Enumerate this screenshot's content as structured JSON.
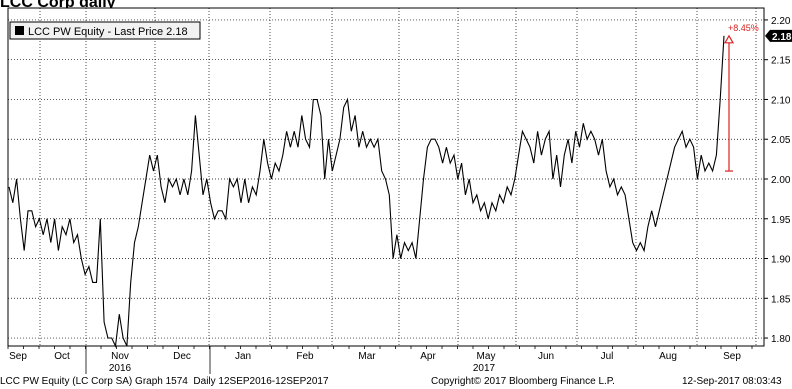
{
  "header": {
    "caption": "LCC Corp daily"
  },
  "chart_data": {
    "type": "line",
    "legend": {
      "text": "LCC PW Equity - Last Price 2.18",
      "placement": "top-left"
    },
    "y_ticks": [
      "1.80",
      "1.85",
      "1.90",
      "1.95",
      "2.00",
      "2.05",
      "2.10",
      "2.15",
      "2.20"
    ],
    "ylim": [
      1.79,
      2.215
    ],
    "grid": true,
    "month_labels": [
      "Sep",
      "Oct",
      "Nov",
      "Dec",
      "Jan",
      "Feb",
      "Mar",
      "Apr",
      "May",
      "Jun",
      "Jul",
      "Aug",
      "Sep"
    ],
    "year_labels": [
      "2016",
      "2017"
    ],
    "last_price_label": "2.18",
    "change_annotation": "+8.45%",
    "series": [
      {
        "values": [
          1.99,
          1.97,
          2.0,
          1.95,
          1.91,
          1.96,
          1.96,
          1.94,
          1.95,
          1.93,
          1.95,
          1.92,
          1.95,
          1.91,
          1.94,
          1.93,
          1.95,
          1.92,
          1.93,
          1.9,
          1.88,
          1.89,
          1.87,
          1.87,
          1.95,
          1.82,
          1.8,
          1.8,
          1.79,
          1.83,
          1.8,
          1.79,
          1.87,
          1.92,
          1.94,
          1.97,
          2.0,
          2.03,
          2.01,
          2.03,
          1.99,
          1.97,
          2.0,
          1.99,
          2.0,
          1.98,
          2.0,
          1.98,
          2.01,
          2.08,
          2.03,
          1.98,
          2.0,
          1.97,
          1.95,
          1.96,
          1.96,
          1.95,
          2.0,
          1.99,
          2.0,
          1.97,
          2.0,
          1.97,
          1.99,
          1.98,
          2.01,
          2.05,
          2.02,
          2.0,
          2.02,
          2.01,
          2.03,
          2.06,
          2.04,
          2.06,
          2.04,
          2.08,
          2.05,
          2.04,
          2.1,
          2.1,
          2.08,
          2.0,
          2.05,
          2.01,
          2.03,
          2.05,
          2.09,
          2.1,
          2.06,
          2.08,
          2.04,
          2.06,
          2.04,
          2.05,
          2.04,
          2.05,
          2.01,
          2.0,
          1.98,
          1.9,
          1.93,
          1.9,
          1.92,
          1.91,
          1.92,
          1.9,
          1.95,
          2.0,
          2.04,
          2.05,
          2.05,
          2.04,
          2.02,
          2.04,
          2.02,
          2.03,
          2.0,
          2.02,
          1.98,
          2.0,
          1.97,
          1.98,
          1.96,
          1.97,
          1.95,
          1.97,
          1.96,
          1.98,
          1.97,
          1.99,
          1.98,
          2.0,
          2.03,
          2.06,
          2.05,
          2.04,
          2.02,
          2.06,
          2.03,
          2.05,
          2.06,
          2.0,
          2.03,
          1.99,
          2.03,
          2.05,
          2.02,
          2.06,
          2.04,
          2.07,
          2.05,
          2.06,
          2.05,
          2.03,
          2.05,
          2.01,
          1.99,
          2.0,
          1.98,
          1.99,
          1.98,
          1.95,
          1.92,
          1.91,
          1.92,
          1.91,
          1.94,
          1.96,
          1.94,
          1.96,
          1.98,
          2.0,
          2.02,
          2.04,
          2.05,
          2.06,
          2.04,
          2.05,
          2.04,
          2.0,
          2.03,
          2.01,
          2.02,
          2.01,
          2.03,
          2.1,
          2.18
        ]
      }
    ]
  }
}
